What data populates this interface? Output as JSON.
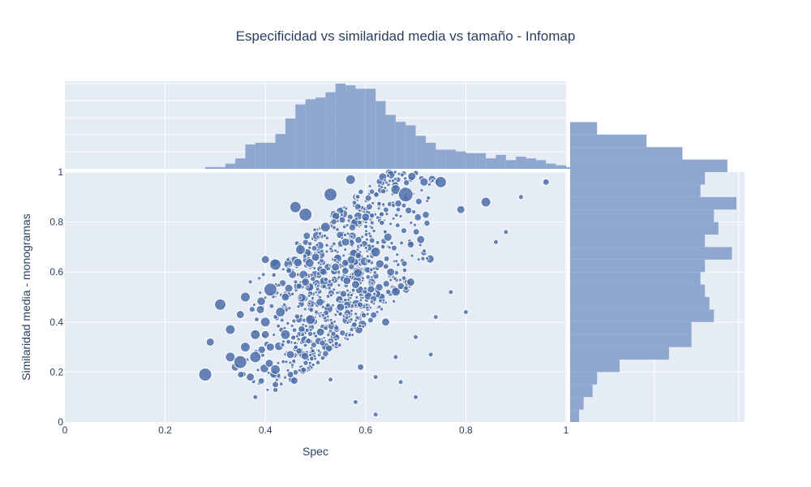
{
  "chart_data": {
    "type": "scatter",
    "title": "Especificidad vs similaridad media vs tamaño - Infomap",
    "xlabel": "Spec",
    "ylabel": "Similaridad media - monogramas",
    "xlim": [
      0,
      1
    ],
    "ylim": [
      0,
      1
    ],
    "x_ticks": [
      "0",
      "0.2",
      "0.4",
      "0.6",
      "0.8",
      "1"
    ],
    "y_ticks": [
      "0",
      "0.2",
      "0.4",
      "0.6",
      "0.8",
      "1"
    ],
    "grid": true,
    "colors": {
      "plot_bg": "#e5ecf6",
      "marker": "#4c6fa8",
      "marker_edge": "#ffffff",
      "histogram": "#8fa6cf",
      "grid": "#ffffff",
      "text": "#2a3f5f"
    },
    "marginal_x_histogram": {
      "bin_width": 0.02,
      "bin_start": 0.28,
      "counts": [
        1,
        1,
        3,
        6,
        14,
        15,
        15,
        20,
        29,
        37,
        40,
        41,
        44,
        49,
        48,
        46,
        46,
        39,
        31,
        27,
        25,
        19,
        15,
        11,
        11,
        10,
        9,
        9,
        6,
        8,
        5,
        7,
        6,
        5,
        3,
        2,
        1,
        1
      ]
    },
    "marginal_y_histogram": {
      "bin_width": 0.05,
      "bin_start": 0.0,
      "counts": [
        2,
        3,
        5,
        6,
        11,
        22,
        27,
        27,
        32,
        31,
        30,
        29,
        30,
        36,
        30,
        33,
        32,
        37,
        29,
        30,
        35,
        25,
        17,
        6
      ]
    },
    "points": [
      [
        0.28,
        0.19,
        8
      ],
      [
        0.31,
        0.47,
        7
      ],
      [
        0.29,
        0.32,
        5
      ],
      [
        0.33,
        0.26,
        6
      ],
      [
        0.33,
        0.37,
        6
      ],
      [
        0.34,
        0.22,
        5
      ],
      [
        0.35,
        0.24,
        8
      ],
      [
        0.35,
        0.43,
        5
      ],
      [
        0.36,
        0.3,
        6
      ],
      [
        0.36,
        0.5,
        6
      ],
      [
        0.37,
        0.18,
        5
      ],
      [
        0.38,
        0.35,
        6
      ],
      [
        0.38,
        0.26,
        7
      ],
      [
        0.39,
        0.45,
        5
      ],
      [
        0.4,
        0.35,
        5
      ],
      [
        0.4,
        0.4,
        6
      ],
      [
        0.4,
        0.65,
        5
      ],
      [
        0.41,
        0.53,
        8
      ],
      [
        0.41,
        0.3,
        5
      ],
      [
        0.42,
        0.63,
        7
      ],
      [
        0.42,
        0.21,
        6
      ],
      [
        0.43,
        0.44,
        6
      ],
      [
        0.44,
        0.5,
        5
      ],
      [
        0.44,
        0.35,
        6
      ],
      [
        0.45,
        0.27,
        5
      ],
      [
        0.46,
        0.86,
        7
      ],
      [
        0.47,
        0.69,
        6
      ],
      [
        0.48,
        0.56,
        5
      ],
      [
        0.48,
        0.83,
        8
      ],
      [
        0.49,
        0.41,
        6
      ],
      [
        0.5,
        0.66,
        5
      ],
      [
        0.51,
        0.36,
        5
      ],
      [
        0.52,
        0.78,
        6
      ],
      [
        0.53,
        0.91,
        8
      ],
      [
        0.54,
        0.62,
        5
      ],
      [
        0.55,
        0.46,
        5
      ],
      [
        0.56,
        0.72,
        5
      ],
      [
        0.57,
        0.97,
        6
      ],
      [
        0.58,
        0.55,
        5
      ],
      [
        0.6,
        0.82,
        5
      ],
      [
        0.62,
        0.68,
        6
      ],
      [
        0.64,
        0.4,
        5
      ],
      [
        0.65,
        0.6,
        5
      ],
      [
        0.66,
        0.93,
        6
      ],
      [
        0.68,
        0.91,
        9
      ],
      [
        0.69,
        0.56,
        5
      ],
      [
        0.71,
        0.73,
        5
      ],
      [
        0.75,
        0.96,
        7
      ],
      [
        0.79,
        0.85,
        5
      ],
      [
        0.84,
        0.88,
        6
      ],
      [
        0.38,
        0.1,
        3
      ],
      [
        0.42,
        0.15,
        4
      ],
      [
        0.45,
        0.19,
        4
      ],
      [
        0.53,
        0.17,
        3
      ],
      [
        0.59,
        0.22,
        4
      ],
      [
        0.62,
        0.18,
        3
      ],
      [
        0.66,
        0.26,
        3
      ],
      [
        0.7,
        0.34,
        3
      ],
      [
        0.74,
        0.42,
        3
      ],
      [
        0.8,
        0.44,
        3
      ],
      [
        0.86,
        0.72,
        3
      ],
      [
        0.88,
        0.76,
        3
      ],
      [
        0.91,
        0.9,
        3
      ],
      [
        0.96,
        0.96,
        4
      ],
      [
        0.77,
        0.52,
        3
      ],
      [
        0.58,
        0.08,
        3
      ],
      [
        0.62,
        0.03,
        3
      ],
      [
        0.67,
        0.16,
        3
      ],
      [
        0.7,
        0.1,
        3
      ],
      [
        0.73,
        0.27,
        3
      ]
    ],
    "cloud": {
      "seed": 7,
      "count": 900,
      "x_range": [
        0.33,
        0.78
      ],
      "y_range": [
        0.12,
        1.0
      ],
      "size_range": [
        2,
        5.5
      ]
    }
  }
}
